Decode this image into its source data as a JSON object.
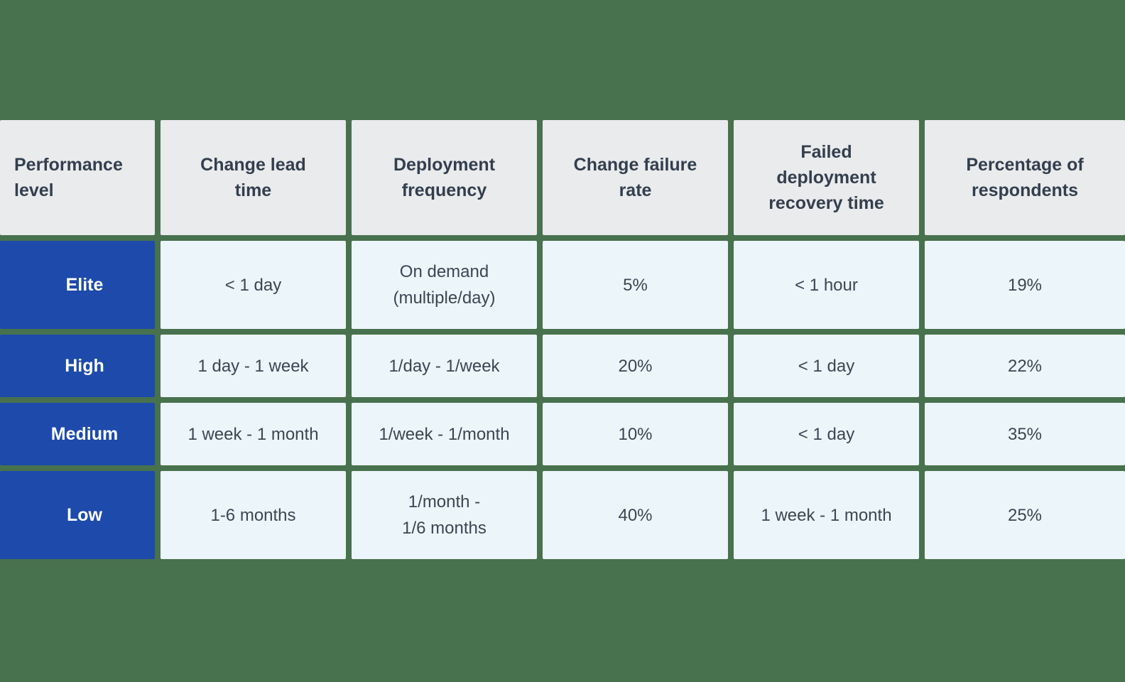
{
  "colors": {
    "background": "#48714E",
    "header_cell_bg": "#E9EBEC",
    "data_cell_bg": "#ECF5FA",
    "row_label_bg": "#1D4AAB",
    "header_text": "#333E4E",
    "data_text": "#3B4654",
    "row_label_text": "#FFFFFF"
  },
  "table": {
    "headers": [
      "Performance\nlevel",
      "Change lead\ntime",
      "Deployment\nfrequency",
      "Change failure\nrate",
      "Failed\ndeployment\nrecovery time",
      "Percentage of\nrespondents"
    ],
    "rows": [
      {
        "label": "Elite",
        "cells": [
          "< 1 day",
          "On demand\n(multiple/day)",
          "5%",
          "< 1 hour",
          "19%"
        ]
      },
      {
        "label": "High",
        "cells": [
          "1 day - 1 week",
          "1/day - 1/week",
          "20%",
          "< 1 day",
          "22%"
        ]
      },
      {
        "label": "Medium",
        "cells": [
          "1 week - 1 month",
          "1/week - 1/month",
          "10%",
          "< 1 day",
          "35%"
        ]
      },
      {
        "label": "Low",
        "cells": [
          "1-6 months",
          "1/month -\n1/6 months",
          "40%",
          "1 week - 1 month",
          "25%"
        ]
      }
    ]
  },
  "chart_data": {
    "type": "table",
    "columns": [
      "Performance level",
      "Change lead time",
      "Deployment frequency",
      "Change failure rate",
      "Failed deployment recovery time",
      "Percentage of respondents"
    ],
    "rows": [
      [
        "Elite",
        "< 1 day",
        "On demand (multiple/day)",
        "5%",
        "< 1 hour",
        "19%"
      ],
      [
        "High",
        "1 day - 1 week",
        "1/day - 1/week",
        "20%",
        "< 1 day",
        "22%"
      ],
      [
        "Medium",
        "1 week - 1 month",
        "1/week - 1/month",
        "10%",
        "< 1 day",
        "35%"
      ],
      [
        "Low",
        "1-6 months",
        "1/month - 1/6 months",
        "40%",
        "1 week - 1 month",
        "25%"
      ]
    ]
  }
}
